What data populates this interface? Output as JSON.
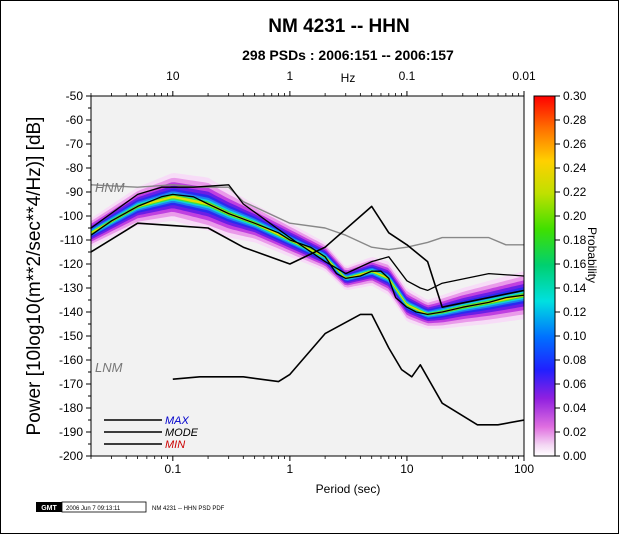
{
  "chart_data": {
    "type": "heatmap",
    "title": "NM 4231 -- HHN",
    "subtitle": "298 PSDs : 2006:151 -- 2006:157",
    "xlabel": "Period (sec)",
    "ylabel": "Power [10log10(m**2/sec**4/Hz)] [dB]",
    "top_axis_label": "Hz",
    "x_scale": "log",
    "xlim": [
      0.02,
      100
    ],
    "ylim": [
      -200,
      -50
    ],
    "x_ticks": [
      "0.1",
      "1",
      "10",
      "100"
    ],
    "top_ticks": [
      "10",
      "1",
      "0.1",
      "0.01"
    ],
    "y_ticks": [
      "-50",
      "-60",
      "-70",
      "-80",
      "-90",
      "-100",
      "-110",
      "-120",
      "-130",
      "-140",
      "-150",
      "-160",
      "-170",
      "-180",
      "-190",
      "-200"
    ],
    "colorbar_label": "Probability",
    "colorbar_range": [
      0.0,
      0.3
    ],
    "colorbar_ticks": [
      "0.00",
      "0.02",
      "0.04",
      "0.06",
      "0.08",
      "0.10",
      "0.12",
      "0.14",
      "0.16",
      "0.18",
      "0.20",
      "0.22",
      "0.24",
      "0.26",
      "0.28",
      "0.30"
    ],
    "legend": [
      {
        "name": "MAX",
        "color": "#0000cc"
      },
      {
        "name": "MODE",
        "color": "#000000"
      },
      {
        "name": "MIN",
        "color": "#cc0000"
      }
    ],
    "reference_labels": [
      "HNM",
      "LNM"
    ],
    "high_noise_model": {
      "x": [
        0.02,
        0.05,
        0.1,
        0.17,
        0.3,
        0.4,
        1,
        2,
        3,
        5,
        7,
        10,
        15,
        20,
        50,
        70,
        100
      ],
      "y": [
        -87,
        -88,
        -87,
        -88,
        -88,
        -94,
        -103,
        -105,
        -108,
        -113,
        -114,
        -113,
        -111,
        -109,
        -109,
        -112,
        -112
      ]
    },
    "low_noise_model": {
      "x": [
        0.1,
        0.17,
        0.4,
        0.8,
        1,
        2,
        4,
        5,
        7,
        9,
        11,
        13,
        20,
        40,
        60,
        100
      ],
      "y": [
        -168,
        -167,
        -167,
        -169,
        -166,
        -149,
        -141,
        -141,
        -155,
        -164,
        -167,
        -162,
        -178,
        -187,
        -187,
        -185
      ]
    },
    "min_curve": {
      "x": [
        0.02,
        0.05,
        0.1,
        0.2,
        0.4,
        1,
        2,
        5,
        7,
        10,
        15,
        20,
        100
      ],
      "y": [
        -115,
        -103,
        -104,
        -105,
        -113,
        -120,
        -113,
        -96,
        -107,
        -112,
        -119,
        -138,
        -131
      ]
    },
    "mode_curve": {
      "x": [
        0.02,
        0.03,
        0.05,
        0.08,
        0.1,
        0.15,
        0.2,
        0.3,
        0.5,
        0.8,
        1,
        1.5,
        2,
        2.5,
        3,
        4,
        5,
        6,
        7,
        8,
        10,
        12,
        15,
        20,
        30,
        50,
        70,
        100
      ],
      "y": [
        -108,
        -102,
        -96,
        -92,
        -91,
        -92,
        -95,
        -99,
        -103,
        -107,
        -110,
        -113,
        -117,
        -124,
        -126,
        -125,
        -123,
        -123,
        -126,
        -134,
        -138,
        -140,
        -141,
        -140,
        -138,
        -136,
        -134,
        -133
      ]
    },
    "max_curve": {
      "x": [
        0.02,
        0.05,
        0.08,
        0.1,
        0.15,
        0.3,
        0.4,
        1,
        2,
        3,
        5,
        7,
        10,
        13,
        15,
        20,
        50,
        100
      ],
      "y": [
        -105,
        -91,
        -88,
        -88,
        -88,
        -87,
        -95,
        -109,
        -119,
        -124,
        -119,
        -117,
        -127,
        -130,
        -131,
        -128,
        -124,
        -125
      ]
    },
    "density_band": {
      "x": [
        0.02,
        0.05,
        0.1,
        0.2,
        0.3,
        0.5,
        1,
        2,
        3,
        5,
        7,
        10,
        15,
        20,
        30,
        50,
        100
      ],
      "center": [
        -107,
        -96,
        -92,
        -95,
        -99,
        -103,
        -110,
        -117,
        -126,
        -123,
        -126,
        -137,
        -141,
        -140,
        -138,
        -136,
        -133
      ],
      "half_width": [
        6,
        8,
        10,
        11,
        10,
        8,
        7,
        6,
        5,
        6,
        7,
        7,
        6,
        7,
        8,
        9,
        10
      ]
    },
    "grid": false
  },
  "footer": {
    "logo_text": "GMT",
    "timestamp": "2006 Jun  7 09:13:11",
    "caption": "NM 4231 -- HHN PSD PDF"
  }
}
